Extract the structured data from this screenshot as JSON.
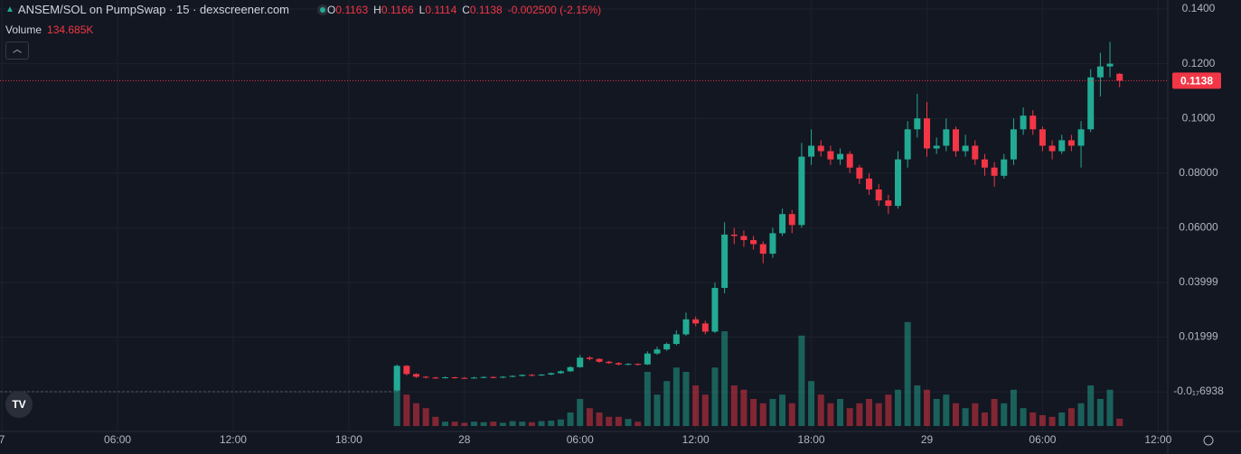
{
  "header": {
    "title": "ANSEM/SOL on PumpSwap · 15 · dexscreener.com",
    "ohlc": [
      {
        "key": "O",
        "value": "0.1163"
      },
      {
        "key": "H",
        "value": "0.1166"
      },
      {
        "key": "L",
        "value": "0.1114"
      },
      {
        "key": "C",
        "value": "0.1138"
      }
    ],
    "change": "-0.002500 (-2.15%)",
    "volume_title": "Volume",
    "volume_value": "134.685K"
  },
  "chart_data": {
    "type": "candlestick",
    "up_color": "#22ab94",
    "down_color": "#f23645",
    "grid": true,
    "xlim": [
      -0.1,
      60.5
    ],
    "xticks": [
      {
        "value": 0,
        "label": "7"
      },
      {
        "value": 6,
        "label": "06:00"
      },
      {
        "value": 12,
        "label": "12:00"
      },
      {
        "value": 18,
        "label": "18:00"
      },
      {
        "value": 24,
        "label": "28"
      },
      {
        "value": 30,
        "label": "06:00"
      },
      {
        "value": 36,
        "label": "12:00"
      },
      {
        "value": 42,
        "label": "18:00"
      },
      {
        "value": 48,
        "label": "29"
      },
      {
        "value": 54,
        "label": "06:00"
      },
      {
        "value": 60,
        "label": "12:00"
      }
    ],
    "ylim": [
      -0.0145,
      0.1433
    ],
    "yticks": [
      {
        "value": 0.14,
        "label": "0.1400"
      },
      {
        "value": 0.12,
        "label": "0.1200"
      },
      {
        "value": 0.1,
        "label": "0.1000"
      },
      {
        "value": 0.08,
        "label": "0.08000"
      },
      {
        "value": 0.06,
        "label": "0.06000"
      },
      {
        "value": 0.03999,
        "label": "0.03999"
      },
      {
        "value": 0.01999,
        "label": "0.01999"
      },
      {
        "value": -6.938e-19,
        "label": "-0.0₁₇6938"
      }
    ],
    "volume_lim": [
      0,
      2500000
    ],
    "last_price": 0.1138,
    "x": [
      20.5,
      21,
      21.5,
      22,
      22.5,
      23,
      23.5,
      24,
      24.5,
      25,
      25.5,
      26,
      26.5,
      27,
      27.5,
      28,
      28.5,
      29,
      29.5,
      30,
      30.5,
      31,
      31.5,
      32,
      32.5,
      33,
      33.5,
      34,
      34.5,
      35,
      35.5,
      36,
      36.5,
      37,
      37.5,
      38,
      38.5,
      39,
      39.5,
      40,
      40.5,
      41,
      41.5,
      42,
      42.5,
      43,
      43.5,
      44,
      44.5,
      45,
      45.5,
      46,
      46.5,
      47,
      47.5,
      48,
      48.5,
      49,
      49.5,
      50,
      50.5,
      51,
      51.5,
      52,
      52.5,
      53,
      53.5,
      54,
      54.5,
      55,
      55.5,
      56,
      56.5,
      57,
      57.5,
      58
    ],
    "open": [
      0.0005,
      0.0095,
      0.0065,
      0.0055,
      0.0052,
      0.005,
      0.0053,
      0.0051,
      0.005,
      0.0052,
      0.0054,
      0.0052,
      0.0055,
      0.0058,
      0.0062,
      0.006,
      0.0063,
      0.0068,
      0.0075,
      0.009,
      0.0125,
      0.012,
      0.011,
      0.0105,
      0.01,
      0.0102,
      0.01,
      0.014,
      0.0155,
      0.0175,
      0.021,
      0.0265,
      0.025,
      0.022,
      0.038,
      0.0575,
      0.057,
      0.0555,
      0.054,
      0.0505,
      0.058,
      0.065,
      0.061,
      0.086,
      0.09,
      0.088,
      0.085,
      0.087,
      0.082,
      0.078,
      0.074,
      0.07,
      0.068,
      0.085,
      0.096,
      0.1,
      0.089,
      0.09,
      0.096,
      0.088,
      0.09,
      0.085,
      0.082,
      0.079,
      0.085,
      0.096,
      0.101,
      0.096,
      0.09,
      0.088,
      0.092,
      0.09,
      0.096,
      0.115,
      0.119,
      0.1163
    ],
    "high": [
      0.01,
      0.0098,
      0.0068,
      0.0058,
      0.0055,
      0.0056,
      0.0055,
      0.0054,
      0.0055,
      0.0057,
      0.0057,
      0.0057,
      0.006,
      0.0064,
      0.0065,
      0.0065,
      0.007,
      0.0078,
      0.0094,
      0.0135,
      0.013,
      0.0123,
      0.0113,
      0.0108,
      0.0105,
      0.0104,
      0.0148,
      0.0165,
      0.018,
      0.0225,
      0.029,
      0.0275,
      0.026,
      0.04,
      0.062,
      0.06,
      0.059,
      0.057,
      0.055,
      0.06,
      0.067,
      0.0665,
      0.091,
      0.096,
      0.092,
      0.09,
      0.089,
      0.088,
      0.083,
      0.08,
      0.076,
      0.072,
      0.088,
      0.099,
      0.109,
      0.106,
      0.093,
      0.1,
      0.097,
      0.094,
      0.092,
      0.087,
      0.084,
      0.087,
      0.1,
      0.104,
      0.103,
      0.097,
      0.092,
      0.094,
      0.094,
      0.099,
      0.118,
      0.124,
      0.128,
      0.1166
    ],
    "low": [
      0.0,
      0.006,
      0.005,
      0.0049,
      0.0047,
      0.0048,
      0.0048,
      0.0047,
      0.0048,
      0.005,
      0.0049,
      0.005,
      0.0053,
      0.0056,
      0.0057,
      0.0058,
      0.0061,
      0.0066,
      0.0073,
      0.0088,
      0.0115,
      0.0106,
      0.0102,
      0.0096,
      0.0097,
      0.0096,
      0.0098,
      0.0135,
      0.015,
      0.017,
      0.0205,
      0.024,
      0.021,
      0.0215,
      0.036,
      0.054,
      0.053,
      0.052,
      0.047,
      0.049,
      0.057,
      0.058,
      0.06,
      0.083,
      0.086,
      0.083,
      0.083,
      0.08,
      0.076,
      0.072,
      0.068,
      0.065,
      0.067,
      0.082,
      0.093,
      0.086,
      0.087,
      0.088,
      0.086,
      0.086,
      0.083,
      0.079,
      0.075,
      0.078,
      0.083,
      0.094,
      0.094,
      0.088,
      0.085,
      0.087,
      0.088,
      0.082,
      0.095,
      0.108,
      0.115,
      0.1114
    ],
    "close": [
      0.0095,
      0.0065,
      0.0055,
      0.0052,
      0.005,
      0.0053,
      0.0051,
      0.005,
      0.0052,
      0.0054,
      0.0052,
      0.0055,
      0.0058,
      0.0062,
      0.006,
      0.0063,
      0.0068,
      0.0075,
      0.009,
      0.0125,
      0.012,
      0.011,
      0.0105,
      0.01,
      0.0102,
      0.01,
      0.014,
      0.0155,
      0.0175,
      0.021,
      0.0265,
      0.025,
      0.022,
      0.038,
      0.0575,
      0.057,
      0.0555,
      0.054,
      0.0505,
      0.058,
      0.065,
      0.061,
      0.086,
      0.09,
      0.088,
      0.085,
      0.087,
      0.082,
      0.078,
      0.074,
      0.07,
      0.068,
      0.085,
      0.096,
      0.1,
      0.089,
      0.09,
      0.096,
      0.088,
      0.09,
      0.085,
      0.082,
      0.079,
      0.085,
      0.096,
      0.101,
      0.096,
      0.09,
      0.088,
      0.092,
      0.09,
      0.096,
      0.115,
      0.119,
      0.12,
      0.1138
    ],
    "volume": [
      1000000,
      580000,
      420000,
      330000,
      170000,
      80000,
      80000,
      60000,
      80000,
      70000,
      80000,
      60000,
      90000,
      80000,
      70000,
      90000,
      100000,
      120000,
      250000,
      500000,
      330000,
      250000,
      170000,
      170000,
      130000,
      80000,
      1000000,
      580000,
      830000,
      1080000,
      1000000,
      750000,
      580000,
      1080000,
      1750000,
      750000,
      670000,
      500000,
      420000,
      500000,
      580000,
      420000,
      1670000,
      830000,
      580000,
      420000,
      500000,
      330000,
      420000,
      500000,
      420000,
      580000,
      670000,
      1920000,
      750000,
      670000,
      500000,
      580000,
      420000,
      330000,
      420000,
      250000,
      500000,
      420000,
      670000,
      330000,
      250000,
      200000,
      170000,
      250000,
      330000,
      420000,
      750000,
      500000,
      670000,
      134685
    ]
  }
}
